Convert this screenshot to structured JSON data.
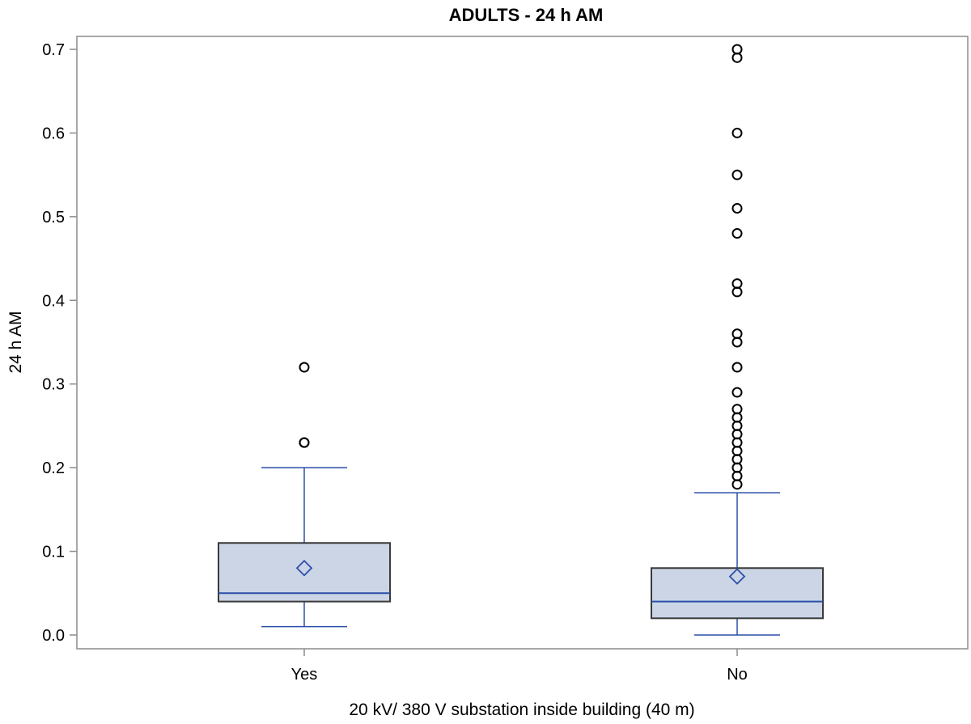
{
  "chart_data": {
    "type": "box",
    "title": "ADULTS - 24 h AM",
    "xlabel": "20 kV/ 380 V substation inside building (40 m)",
    "ylabel": "24 h AM",
    "ylim": [
      -0.015,
      0.715
    ],
    "yticks": [
      "0.0",
      "0.1",
      "0.2",
      "0.3",
      "0.4",
      "0.5",
      "0.6",
      "0.7"
    ],
    "categories": [
      "Yes",
      "No"
    ],
    "groups": [
      {
        "category": "Yes",
        "whisker_low": 0.01,
        "q1": 0.04,
        "median": 0.05,
        "q3": 0.11,
        "whisker_high": 0.2,
        "mean": 0.08,
        "outliers": [
          0.23,
          0.23,
          0.32
        ]
      },
      {
        "category": "No",
        "whisker_low": 0.0,
        "q1": 0.02,
        "median": 0.04,
        "q3": 0.08,
        "whisker_high": 0.17,
        "mean": 0.07,
        "outliers": [
          0.18,
          0.19,
          0.2,
          0.21,
          0.22,
          0.23,
          0.24,
          0.25,
          0.26,
          0.27,
          0.29,
          0.32,
          0.35,
          0.36,
          0.41,
          0.42,
          0.48,
          0.51,
          0.55,
          0.6,
          0.69,
          0.7
        ]
      }
    ],
    "colors": {
      "box_fill": "#cbd5e6",
      "box_edge": "#3a3a3a",
      "whisker": "#2a4fa8",
      "median": "#2a4fa8",
      "mean_marker": "#2a4fa8",
      "outlier": "#000000",
      "frame": "#8c8c8c"
    },
    "grid": false,
    "legend": "none"
  }
}
